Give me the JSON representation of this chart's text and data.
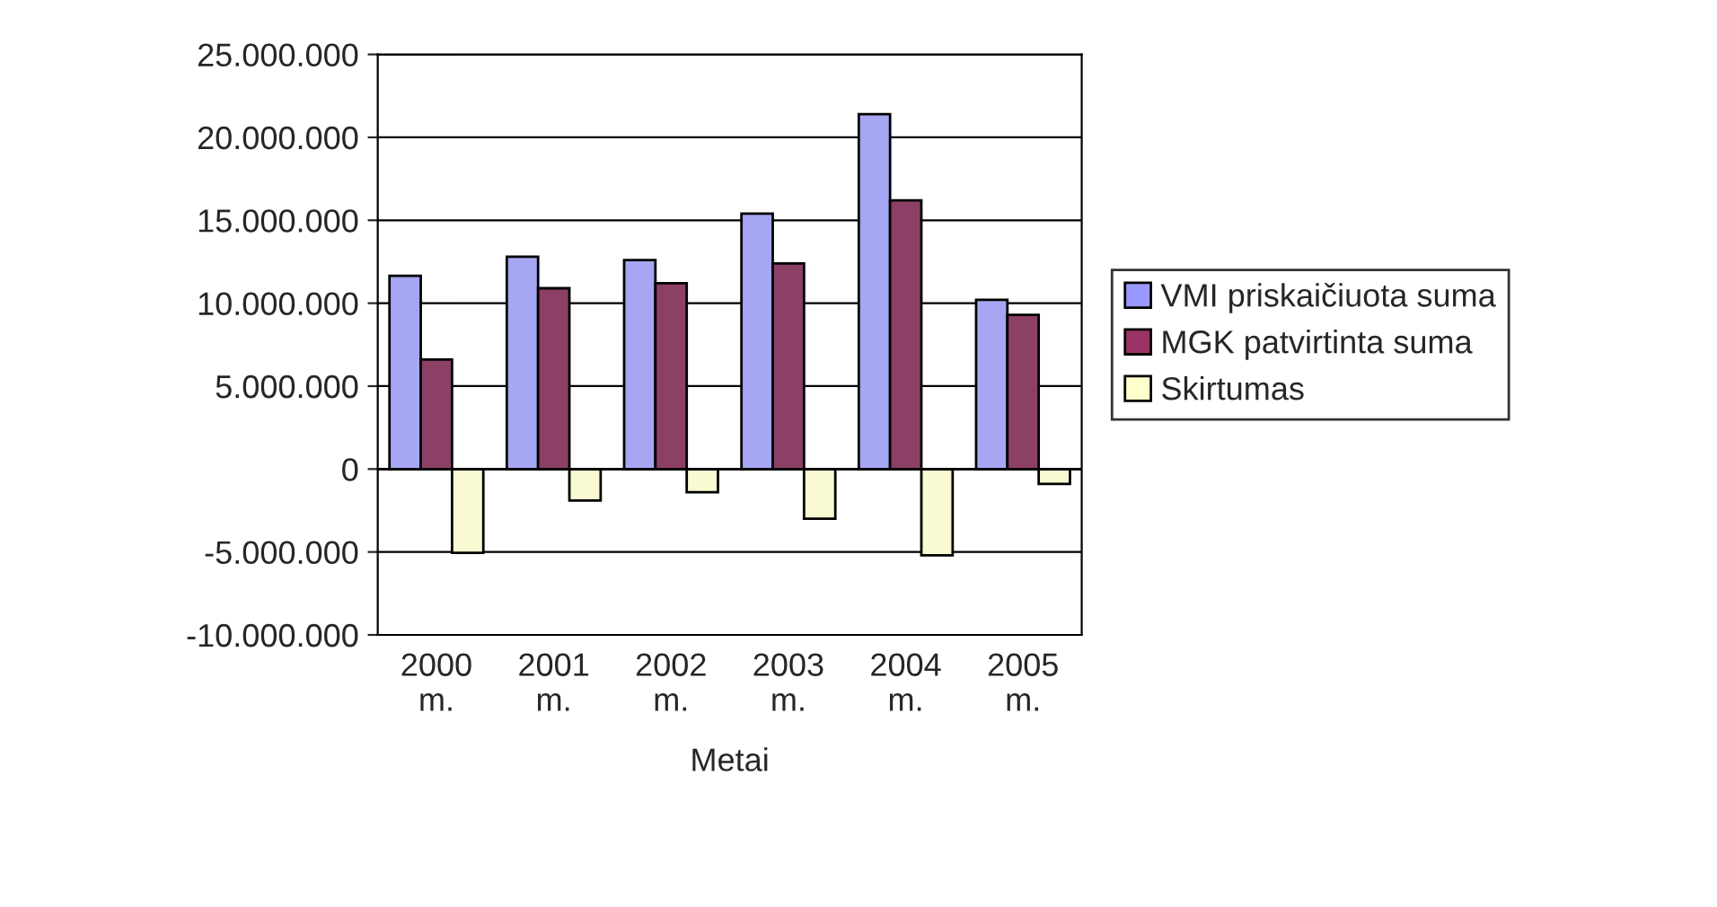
{
  "chart_data": {
    "type": "bar",
    "xlabel": "Metai",
    "categories": [
      "2000\nm.",
      "2001\nm.",
      "2002\nm.",
      "2003\nm.",
      "2004\nm.",
      "2005\nm."
    ],
    "series": [
      {
        "name": "VMI priskaičiuota suma",
        "color": "#9999ff",
        "values": [
          11650000,
          12800000,
          12600000,
          15400000,
          21400000,
          10200000
        ]
      },
      {
        "name": "MGK patvirtinta suma",
        "color": "#993366",
        "values": [
          6600000,
          10900000,
          11200000,
          12400000,
          16200000,
          9300000
        ]
      },
      {
        "name": "Skirtumas",
        "color": "#ffffcc",
        "values": [
          -5050000,
          -1900000,
          -1400000,
          -3000000,
          -5200000,
          -900000
        ]
      }
    ],
    "ylim": [
      -10000000,
      25000000
    ],
    "yticks": [
      {
        "value": -10000000,
        "label": "-10.000.000"
      },
      {
        "value": -5000000,
        "label": "-5.000.000"
      },
      {
        "value": 0,
        "label": "0"
      },
      {
        "value": 5000000,
        "label": "5.000.000"
      },
      {
        "value": 10000000,
        "label": "10.000.000"
      },
      {
        "value": 15000000,
        "label": "15.000.000"
      },
      {
        "value": 20000000,
        "label": "20.000.000"
      },
      {
        "value": 25000000,
        "label": "25.000.000"
      }
    ],
    "grid": "y",
    "legend": "right"
  }
}
